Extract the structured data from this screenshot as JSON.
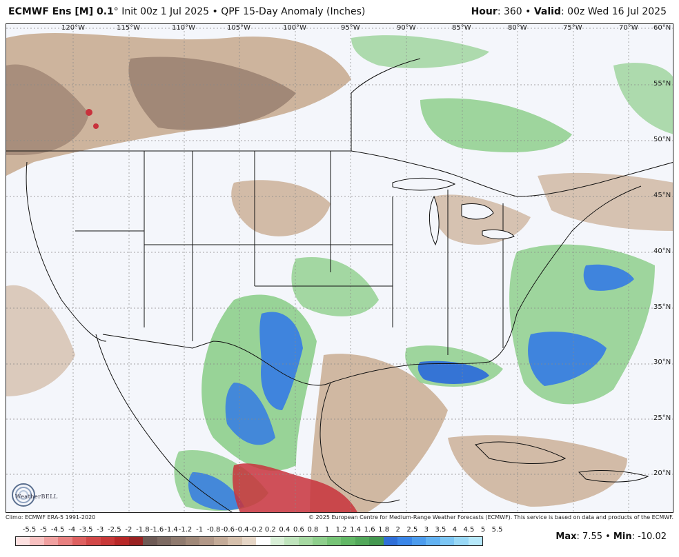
{
  "header": {
    "model": "ECMWF Ens [M] 0.1",
    "degree": "°",
    "init": " Init 00z 1 Jul 2025",
    "bullet": " • ",
    "product": "QPF 15-Day Anomaly (Inches)",
    "hour_label": "Hour",
    "hour_value": ": 360 • ",
    "valid_label": "Valid",
    "valid_value": ": 00z Wed 16 Jul 2025"
  },
  "map": {
    "lon_labels": [
      "120°W",
      "115°W",
      "110°W",
      "105°W",
      "100°W",
      "95°W",
      "90°W",
      "85°W",
      "80°W",
      "75°W",
      "70°W"
    ],
    "lat_labels": [
      "60°N",
      "55°N",
      "50°N",
      "45°N",
      "40°N",
      "35°N",
      "30°N",
      "25°N",
      "20°N"
    ],
    "logo_text": "WeatherBELL",
    "colors": {
      "dry": "#c9ad92",
      "dry_strong": "#8f7566",
      "very_dry": "#c8323c",
      "wet": "#8ecf8c",
      "wet_medium": "#4fa75c",
      "wet_strong": "#3a7fe0",
      "background": "#f4f6fb"
    }
  },
  "footer": {
    "climo": "Climo: ECMWF ERA-5 1991-2020",
    "copyright": "© 2025 European Centre for Medium-Range Weather Forecasts (ECMWF). This service is based on data and products of the ECMWF."
  },
  "colorbar": {
    "labels": [
      "-5.5",
      "-5",
      "-4.5",
      "-4",
      "-3.5",
      "-3",
      "-2.5",
      "-2",
      "-1.8",
      "-1.6",
      "-1.4",
      "-1.2",
      "-1",
      "-0.8",
      "-0.6",
      "-0.4",
      "-0.2",
      "0.2",
      "0.4",
      "0.6",
      "0.8",
      "1",
      "1.2",
      "1.4",
      "1.6",
      "1.8",
      "2",
      "2.5",
      "3",
      "3.5",
      "4",
      "4.5",
      "5",
      "5.5"
    ],
    "colors": [
      "#fde0e0",
      "#f8c0c0",
      "#f0a0a0",
      "#e88080",
      "#de6060",
      "#d24848",
      "#c83838",
      "#b82828",
      "#9a2222",
      "#6e5a55",
      "#7d6a62",
      "#8f7a6e",
      "#a08878",
      "#b29888",
      "#c4ab98",
      "#d6c0ac",
      "#e6d6c6",
      "#ffffff",
      "#d8efd6",
      "#bfe4bc",
      "#a6d9a2",
      "#8ecf8c",
      "#76c476",
      "#62b866",
      "#52a85a",
      "#449850",
      "#2f6fd8",
      "#3a86e8",
      "#4c9cee",
      "#62b2f2",
      "#7cc6f4",
      "#98d8f6",
      "#b6e8fa"
    ]
  },
  "stats": {
    "max_label": "Max",
    "max_value": ": 7.55 • ",
    "min_label": "Min",
    "min_value": ": -10.02"
  }
}
